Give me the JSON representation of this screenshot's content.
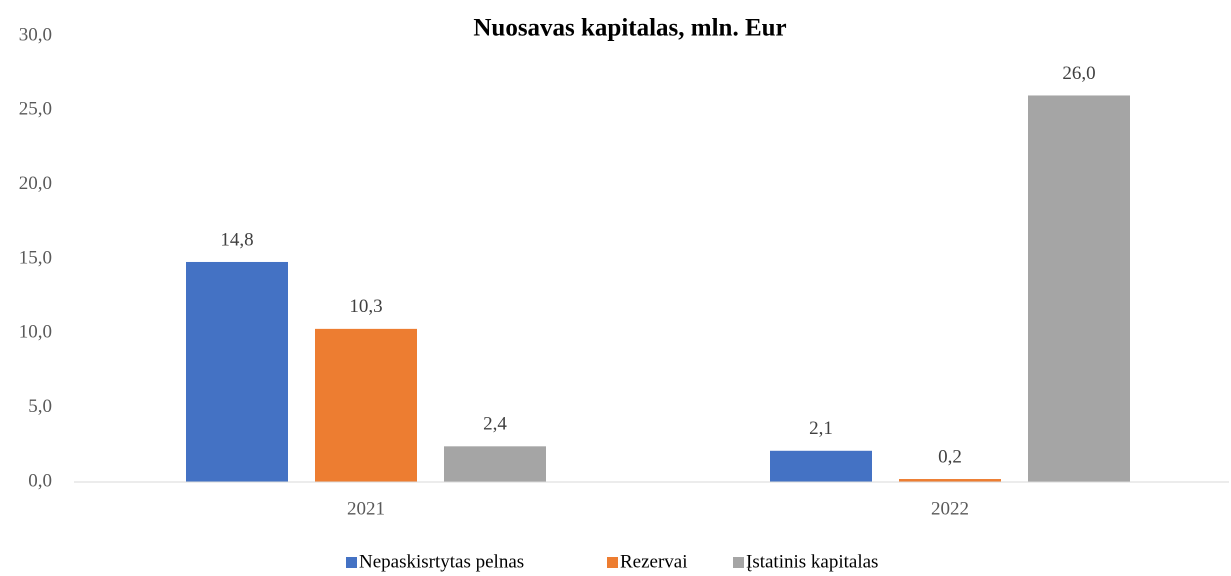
{
  "chart_data": {
    "type": "bar",
    "title": "Nuosavas kapitalas, mln. Eur",
    "categories": [
      "2021",
      "2022"
    ],
    "series": [
      {
        "name": "Nepaskisrtytas pelnas",
        "color": "#4472c4",
        "values": [
          14.8,
          2.1
        ],
        "value_labels": [
          "14,8",
          "2,1"
        ]
      },
      {
        "name": "Rezervai",
        "color": "#ed7d31",
        "values": [
          10.3,
          0.2
        ],
        "value_labels": [
          "10,3",
          "0,2"
        ]
      },
      {
        "name": "Įstatinis kapitalas",
        "color": "#a5a5a5",
        "values": [
          2.4,
          26.0
        ],
        "value_labels": [
          "2,4",
          "26,0"
        ]
      }
    ],
    "ylim": [
      0,
      30
    ],
    "yticks": [
      {
        "value": 0,
        "label": "0,0"
      },
      {
        "value": 5,
        "label": "5,0"
      },
      {
        "value": 10,
        "label": "10,0"
      },
      {
        "value": 15,
        "label": "15,0"
      },
      {
        "value": 20,
        "label": "20,0"
      },
      {
        "value": 25,
        "label": "25,0"
      },
      {
        "value": 30,
        "label": "30,0"
      }
    ],
    "grid": false,
    "legend": "bottom"
  }
}
